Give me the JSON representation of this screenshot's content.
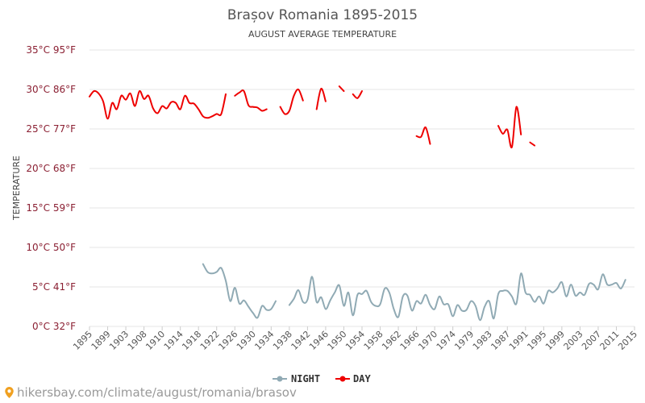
{
  "colors": {
    "night": "#90aab4",
    "day": "#ee0000",
    "grid": "#e6e6e6",
    "tick_label": "#8b2033",
    "pin": "#f0a020"
  },
  "footer": {
    "url_text": "hikersbay.com/climate/august/romania/brasov",
    "icon": "map-pin-icon"
  },
  "chart_data": {
    "type": "line",
    "title": "Brașov Romania 1895-2015",
    "subtitle": "AUGUST AVERAGE TEMPERATURE",
    "ylabel": "TEMPERATURE",
    "xlabel": "",
    "xlim": [
      1895,
      2015
    ],
    "ylim": [
      0,
      35
    ],
    "grid": true,
    "legend_position": "bottom-center",
    "y_ticks": [
      {
        "value": 0,
        "label": "0°C 32°F"
      },
      {
        "value": 5,
        "label": "5°C 41°F"
      },
      {
        "value": 10,
        "label": "10°C 50°F"
      },
      {
        "value": 15,
        "label": "15°C 59°F"
      },
      {
        "value": 20,
        "label": "20°C 68°F"
      },
      {
        "value": 25,
        "label": "25°C 77°F"
      },
      {
        "value": 30,
        "label": "30°C 86°F"
      },
      {
        "value": 35,
        "label": "35°C 95°F"
      }
    ],
    "x_ticks": [
      1895,
      1899,
      1903,
      1908,
      1910,
      1914,
      1918,
      1922,
      1926,
      1930,
      1934,
      1938,
      1942,
      1946,
      1950,
      1954,
      1958,
      1962,
      1966,
      1970,
      1974,
      1979,
      1983,
      1987,
      1991,
      1995,
      1999,
      2003,
      2007,
      2011,
      2015
    ],
    "series": [
      {
        "name": "NIGHT",
        "color": "#90aab4",
        "segments": [
          [
            [
              1920,
              7.9
            ],
            [
              1921,
              6.9
            ],
            [
              1922,
              6.7
            ],
            [
              1923,
              6.9
            ],
            [
              1924,
              7.4
            ],
            [
              1925,
              5.8
            ],
            [
              1926,
              3.2
            ],
            [
              1927,
              4.9
            ],
            [
              1928,
              2.9
            ],
            [
              1929,
              3.3
            ],
            [
              1930,
              2.5
            ],
            [
              1931,
              1.7
            ],
            [
              1932,
              1.1
            ],
            [
              1933,
              2.6
            ],
            [
              1934,
              2.1
            ],
            [
              1935,
              2.2
            ],
            [
              1936,
              3.2
            ]
          ],
          [
            [
              1939,
              2.7
            ],
            [
              1940,
              3.5
            ],
            [
              1941,
              4.6
            ],
            [
              1942,
              3.1
            ],
            [
              1943,
              3.4
            ],
            [
              1944,
              6.3
            ],
            [
              1945,
              3.1
            ],
            [
              1946,
              3.7
            ],
            [
              1947,
              2.2
            ],
            [
              1948,
              3.3
            ],
            [
              1949,
              4.3
            ],
            [
              1950,
              5.2
            ],
            [
              1951,
              2.6
            ],
            [
              1952,
              4.3
            ],
            [
              1953,
              1.4
            ],
            [
              1954,
              4.0
            ],
            [
              1955,
              4.1
            ],
            [
              1956,
              4.5
            ],
            [
              1957,
              3.1
            ],
            [
              1958,
              2.6
            ],
            [
              1959,
              2.8
            ],
            [
              1960,
              4.8
            ],
            [
              1961,
              4.3
            ],
            [
              1962,
              2.2
            ],
            [
              1963,
              1.2
            ],
            [
              1964,
              3.8
            ],
            [
              1965,
              3.9
            ],
            [
              1966,
              2.0
            ],
            [
              1967,
              3.2
            ],
            [
              1968,
              2.9
            ],
            [
              1969,
              4.0
            ],
            [
              1970,
              2.7
            ],
            [
              1971,
              2.2
            ],
            [
              1972,
              3.8
            ],
            [
              1973,
              2.8
            ],
            [
              1974,
              2.8
            ],
            [
              1975,
              1.3
            ],
            [
              1976,
              2.7
            ],
            [
              1977,
              2.0
            ],
            [
              1978,
              2.1
            ],
            [
              1979,
              3.2
            ],
            [
              1980,
              2.6
            ],
            [
              1981,
              0.8
            ],
            [
              1982,
              2.5
            ],
            [
              1983,
              3.2
            ],
            [
              1984,
              1.0
            ],
            [
              1985,
              4.1
            ],
            [
              1986,
              4.5
            ],
            [
              1987,
              4.5
            ],
            [
              1988,
              3.8
            ],
            [
              1989,
              2.9
            ],
            [
              1990,
              6.7
            ],
            [
              1991,
              4.3
            ],
            [
              1992,
              4.0
            ],
            [
              1993,
              3.1
            ],
            [
              1994,
              3.8
            ],
            [
              1995,
              2.9
            ],
            [
              1996,
              4.5
            ],
            [
              1997,
              4.3
            ],
            [
              1998,
              4.8
            ],
            [
              1999,
              5.6
            ],
            [
              2000,
              3.8
            ],
            [
              2001,
              5.3
            ],
            [
              2002,
              3.9
            ],
            [
              2003,
              4.3
            ],
            [
              2004,
              4.0
            ],
            [
              2005,
              5.4
            ],
            [
              2006,
              5.3
            ],
            [
              2007,
              4.7
            ],
            [
              2008,
              6.6
            ],
            [
              2009,
              5.3
            ],
            [
              2010,
              5.3
            ],
            [
              2011,
              5.5
            ],
            [
              2012,
              4.8
            ],
            [
              2013,
              5.9
            ]
          ]
        ]
      },
      {
        "name": "DAY",
        "color": "#ee0000",
        "segments": [
          [
            [
              1895,
              29.1
            ],
            [
              1896,
              29.8
            ],
            [
              1897,
              29.5
            ],
            [
              1898,
              28.5
            ],
            [
              1899,
              26.3
            ],
            [
              1900,
              28.3
            ],
            [
              1901,
              27.5
            ],
            [
              1902,
              29.2
            ],
            [
              1903,
              28.7
            ],
            [
              1904,
              29.5
            ],
            [
              1905,
              27.9
            ],
            [
              1906,
              29.8
            ],
            [
              1907,
              28.8
            ],
            [
              1908,
              29.2
            ],
            [
              1909,
              27.6
            ],
            [
              1910,
              27.0
            ],
            [
              1911,
              27.9
            ],
            [
              1912,
              27.6
            ],
            [
              1913,
              28.4
            ],
            [
              1914,
              28.3
            ],
            [
              1915,
              27.5
            ],
            [
              1916,
              29.2
            ],
            [
              1917,
              28.3
            ],
            [
              1918,
              28.2
            ],
            [
              1919,
              27.5
            ],
            [
              1920,
              26.6
            ],
            [
              1921,
              26.4
            ],
            [
              1922,
              26.6
            ],
            [
              1923,
              26.9
            ],
            [
              1924,
              26.9
            ],
            [
              1925,
              29.4
            ]
          ],
          [
            [
              1927,
              29.2
            ],
            [
              1928,
              29.6
            ],
            [
              1929,
              29.8
            ],
            [
              1930,
              28.0
            ],
            [
              1931,
              27.8
            ],
            [
              1932,
              27.7
            ],
            [
              1933,
              27.3
            ],
            [
              1934,
              27.5
            ]
          ],
          [
            [
              1937,
              27.8
            ],
            [
              1938,
              26.9
            ],
            [
              1939,
              27.3
            ],
            [
              1940,
              29.2
            ],
            [
              1941,
              30.0
            ],
            [
              1942,
              28.6
            ]
          ],
          [
            [
              1945,
              27.5
            ],
            [
              1946,
              30.1
            ],
            [
              1947,
              28.5
            ]
          ],
          [
            [
              1950,
              30.4
            ],
            [
              1951,
              29.8
            ]
          ],
          [
            [
              1953,
              29.4
            ],
            [
              1954,
              28.9
            ],
            [
              1955,
              29.8
            ]
          ],
          [
            [
              1967,
              24.1
            ],
            [
              1968,
              24.0
            ],
            [
              1969,
              25.2
            ],
            [
              1970,
              23.1
            ]
          ],
          [
            [
              1985,
              25.4
            ],
            [
              1986,
              24.4
            ],
            [
              1987,
              24.9
            ],
            [
              1988,
              22.7
            ],
            [
              1989,
              27.8
            ],
            [
              1990,
              24.3
            ]
          ],
          [
            [
              1992,
              23.3
            ],
            [
              1993,
              22.9
            ]
          ]
        ]
      }
    ]
  }
}
